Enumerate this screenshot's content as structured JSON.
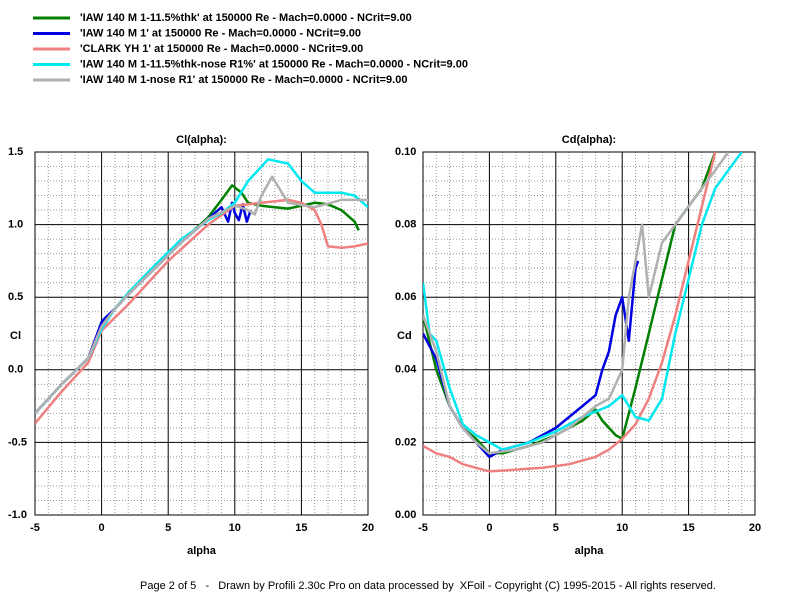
{
  "chart_data": [
    {
      "type": "line",
      "title": "Cl(alpha):",
      "xlabel": "alpha",
      "ylabel": "Cl",
      "xlim": [
        -5,
        20
      ],
      "ylim": [
        -1.0,
        1.5
      ],
      "xticks": [
        -5,
        0,
        5,
        10,
        15,
        20
      ],
      "yticks": [
        {
          "value": -1.0,
          "label": "-1.0"
        },
        -0.5,
        {
          "value": 0.0,
          "label": "0.0"
        },
        0.5,
        {
          "value": 1.0,
          "label": "1.0"
        },
        1.5
      ],
      "grid": true,
      "series": [
        {
          "name": "'IAW 140 M 1-11.5%thk' at 150000 Re - Mach=0.0000 - NCrit=9.00",
          "color": "#008000",
          "x": [
            -5,
            -3,
            -1,
            0,
            1,
            2,
            4,
            6,
            8,
            9,
            9.8,
            10.5,
            11,
            12,
            13,
            14,
            15,
            16,
            17,
            18,
            19,
            19.3
          ],
          "values": [
            -0.3,
            -0.1,
            0.08,
            0.3,
            0.42,
            0.52,
            0.7,
            0.88,
            1.05,
            1.17,
            1.27,
            1.22,
            1.15,
            1.13,
            1.12,
            1.11,
            1.13,
            1.15,
            1.14,
            1.1,
            1.02,
            0.96
          ]
        },
        {
          "name": "'IAW 140 M 1' at 150000 Re - Mach=0.0000 - NCrit=9.00",
          "color": "#0000e0",
          "x": [
            -5,
            -3,
            -1,
            0,
            0.3,
            1,
            2,
            4,
            6,
            8,
            9,
            9.5,
            9.8,
            10,
            10.3,
            10.6,
            10.9,
            11.2
          ],
          "values": [
            -0.3,
            -0.1,
            0.08,
            0.33,
            0.36,
            0.42,
            0.52,
            0.7,
            0.88,
            1.04,
            1.12,
            1.02,
            1.15,
            1.08,
            1.03,
            1.14,
            1.02,
            1.1
          ]
        },
        {
          "name": "'CLARK YH 1' at 150000 Re - Mach=0.0000 - NCrit=9.00",
          "color": "#f08080",
          "x": [
            -5,
            -3,
            -1,
            0,
            2,
            5,
            8,
            10,
            12,
            14,
            15,
            16,
            16.5,
            17,
            18,
            19,
            20
          ],
          "values": [
            -0.37,
            -0.15,
            0.05,
            0.27,
            0.45,
            0.75,
            1.0,
            1.13,
            1.15,
            1.17,
            1.15,
            1.1,
            1.0,
            0.85,
            0.84,
            0.85,
            0.87
          ]
        },
        {
          "name": "'IAW 140 M 1-11.5%thk-nose R1%' at 150000 Re - Mach=0.0000 - NCrit=9.00",
          "color": "#00e8f0",
          "x": [
            -5,
            -3,
            -1,
            0,
            1,
            2,
            4,
            6,
            8,
            9,
            10,
            11,
            12.5,
            14,
            15,
            16,
            18,
            19,
            20
          ],
          "values": [
            -0.3,
            -0.1,
            0.08,
            0.28,
            0.42,
            0.53,
            0.72,
            0.9,
            1.03,
            1.08,
            1.15,
            1.3,
            1.45,
            1.42,
            1.3,
            1.22,
            1.22,
            1.2,
            1.12
          ]
        },
        {
          "name": "'IAW 140 M 1-nose R1' at 150000 Re - Mach=0.0000 - NCrit=9.00",
          "color": "#b0b0b0",
          "x": [
            -5,
            -3,
            -1,
            0,
            1,
            2,
            4,
            6,
            8,
            10,
            11,
            11.5,
            12,
            12.8,
            14,
            16,
            18,
            20
          ],
          "values": [
            -0.3,
            -0.1,
            0.08,
            0.3,
            0.42,
            0.52,
            0.7,
            0.88,
            1.04,
            1.13,
            1.1,
            1.07,
            1.2,
            1.33,
            1.15,
            1.12,
            1.17,
            1.17
          ]
        }
      ]
    },
    {
      "type": "line",
      "title": "Cd(alpha):",
      "xlabel": "alpha",
      "ylabel": "Cd",
      "xlim": [
        -5,
        20
      ],
      "ylim": [
        0.0,
        0.1
      ],
      "xticks": [
        -5,
        0,
        5,
        10,
        15,
        20
      ],
      "yticks": [
        {
          "value": 0.0,
          "label": "0.00"
        },
        0.02,
        0.04,
        0.06,
        0.08,
        {
          "value": 0.1,
          "label": "0.10"
        }
      ],
      "grid": true,
      "series": [
        {
          "color": "#008000",
          "x": [
            -5,
            -4,
            -3,
            -2,
            -1,
            0,
            1,
            3,
            5,
            7,
            8,
            8.5,
            9.5,
            10,
            11,
            12,
            13,
            14,
            15,
            16,
            17
          ],
          "values": [
            0.055,
            0.04,
            0.03,
            0.024,
            0.021,
            0.017,
            0.017,
            0.019,
            0.022,
            0.026,
            0.029,
            0.026,
            0.022,
            0.021,
            0.035,
            0.05,
            0.065,
            0.08,
            0.085,
            0.09,
            0.1
          ]
        },
        {
          "color": "#0000e0",
          "x": [
            -5,
            -4,
            -3,
            -2,
            -1,
            0,
            1,
            3,
            5,
            7,
            8,
            8.5,
            9,
            9.5,
            10,
            10.5,
            11,
            11.2
          ],
          "values": [
            0.05,
            0.043,
            0.03,
            0.024,
            0.02,
            0.016,
            0.018,
            0.02,
            0.024,
            0.03,
            0.033,
            0.04,
            0.045,
            0.055,
            0.06,
            0.048,
            0.068,
            0.07
          ]
        },
        {
          "color": "#f08080",
          "x": [
            -5,
            -4,
            -3,
            -2,
            -1,
            0,
            2,
            4,
            6,
            8,
            9,
            10,
            11,
            12,
            13,
            14,
            15,
            16,
            17
          ],
          "values": [
            0.019,
            0.017,
            0.016,
            0.014,
            0.013,
            0.012,
            0.0125,
            0.013,
            0.014,
            0.016,
            0.018,
            0.021,
            0.025,
            0.032,
            0.042,
            0.055,
            0.07,
            0.085,
            0.1
          ]
        },
        {
          "color": "#00e8f0",
          "x": [
            -5,
            -4.5,
            -4,
            -3,
            -2,
            -1,
            0,
            1,
            3,
            5,
            7,
            9,
            10,
            11,
            12,
            13,
            14,
            15,
            16,
            17,
            18,
            19
          ],
          "values": [
            0.064,
            0.05,
            0.048,
            0.035,
            0.025,
            0.022,
            0.02,
            0.018,
            0.02,
            0.023,
            0.027,
            0.03,
            0.033,
            0.027,
            0.026,
            0.032,
            0.05,
            0.065,
            0.08,
            0.09,
            0.095,
            0.1
          ]
        },
        {
          "color": "#b0b0b0",
          "x": [
            -5,
            -4,
            -3,
            -2,
            -1,
            0,
            2,
            4,
            6,
            8,
            9,
            10,
            10.5,
            11,
            11.5,
            12,
            13,
            14,
            15,
            16,
            17,
            18
          ],
          "values": [
            0.055,
            0.045,
            0.03,
            0.024,
            0.02,
            0.017,
            0.018,
            0.02,
            0.024,
            0.03,
            0.032,
            0.04,
            0.06,
            0.07,
            0.08,
            0.06,
            0.075,
            0.08,
            0.085,
            0.09,
            0.095,
            0.1
          ]
        }
      ]
    }
  ],
  "footer": "Page 2 of 5   -   Drawn by Profili 2.30c Pro on data processed by  XFoil - Copyright (C) 1995-2015 - All rights reserved."
}
